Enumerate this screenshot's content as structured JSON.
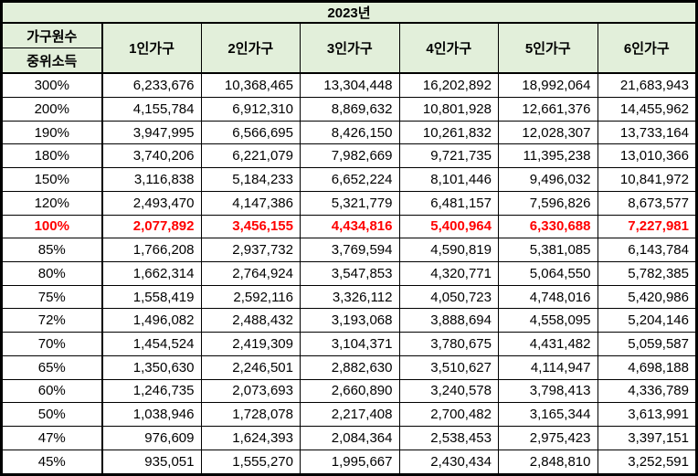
{
  "title": "2023년",
  "header": {
    "corner_top": "가구원수",
    "corner_bottom": "중위소득",
    "columns": [
      "1인가구",
      "2인가구",
      "3인가구",
      "4인가구",
      "5인가구",
      "6인가구"
    ]
  },
  "colors": {
    "header_bg": "#e2efda",
    "highlight_text": "#ff0000",
    "border": "#000000",
    "row_bg": "#ffffff"
  },
  "rows": [
    {
      "percent": "300%",
      "values": [
        "6,233,676",
        "10,368,465",
        "13,304,448",
        "16,202,892",
        "18,992,064",
        "21,683,943"
      ],
      "highlight": false
    },
    {
      "percent": "200%",
      "values": [
        "4,155,784",
        "6,912,310",
        "8,869,632",
        "10,801,928",
        "12,661,376",
        "14,455,962"
      ],
      "highlight": false
    },
    {
      "percent": "190%",
      "values": [
        "3,947,995",
        "6,566,695",
        "8,426,150",
        "10,261,832",
        "12,028,307",
        "13,733,164"
      ],
      "highlight": false
    },
    {
      "percent": "180%",
      "values": [
        "3,740,206",
        "6,221,079",
        "7,982,669",
        "9,721,735",
        "11,395,238",
        "13,010,366"
      ],
      "highlight": false
    },
    {
      "percent": "150%",
      "values": [
        "3,116,838",
        "5,184,233",
        "6,652,224",
        "8,101,446",
        "9,496,032",
        "10,841,972"
      ],
      "highlight": false
    },
    {
      "percent": "120%",
      "values": [
        "2,493,470",
        "4,147,386",
        "5,321,779",
        "6,481,157",
        "7,596,826",
        "8,673,577"
      ],
      "highlight": false
    },
    {
      "percent": "100%",
      "values": [
        "2,077,892",
        "3,456,155",
        "4,434,816",
        "5,400,964",
        "6,330,688",
        "7,227,981"
      ],
      "highlight": true
    },
    {
      "percent": "85%",
      "values": [
        "1,766,208",
        "2,937,732",
        "3,769,594",
        "4,590,819",
        "5,381,085",
        "6,143,784"
      ],
      "highlight": false
    },
    {
      "percent": "80%",
      "values": [
        "1,662,314",
        "2,764,924",
        "3,547,853",
        "4,320,771",
        "5,064,550",
        "5,782,385"
      ],
      "highlight": false
    },
    {
      "percent": "75%",
      "values": [
        "1,558,419",
        "2,592,116",
        "3,326,112",
        "4,050,723",
        "4,748,016",
        "5,420,986"
      ],
      "highlight": false
    },
    {
      "percent": "72%",
      "values": [
        "1,496,082",
        "2,488,432",
        "3,193,068",
        "3,888,694",
        "4,558,095",
        "5,204,146"
      ],
      "highlight": false
    },
    {
      "percent": "70%",
      "values": [
        "1,454,524",
        "2,419,309",
        "3,104,371",
        "3,780,675",
        "4,431,482",
        "5,059,587"
      ],
      "highlight": false
    },
    {
      "percent": "65%",
      "values": [
        "1,350,630",
        "2,246,501",
        "2,882,630",
        "3,510,627",
        "4,114,947",
        "4,698,188"
      ],
      "highlight": false
    },
    {
      "percent": "60%",
      "values": [
        "1,246,735",
        "2,073,693",
        "2,660,890",
        "3,240,578",
        "3,798,413",
        "4,336,789"
      ],
      "highlight": false
    },
    {
      "percent": "50%",
      "values": [
        "1,038,946",
        "1,728,078",
        "2,217,408",
        "2,700,482",
        "3,165,344",
        "3,613,991"
      ],
      "highlight": false
    },
    {
      "percent": "47%",
      "values": [
        "976,609",
        "1,624,393",
        "2,084,364",
        "2,538,453",
        "2,975,423",
        "3,397,151"
      ],
      "highlight": false
    },
    {
      "percent": "45%",
      "values": [
        "935,051",
        "1,555,270",
        "1,995,667",
        "2,430,434",
        "2,848,810",
        "3,252,591"
      ],
      "highlight": false
    }
  ],
  "chart_data": {
    "type": "table",
    "title": "2023년",
    "row_axis_label": "중위소득",
    "column_axis_label": "가구원수",
    "columns": [
      "1인가구",
      "2인가구",
      "3인가구",
      "4인가구",
      "5인가구",
      "6인가구"
    ],
    "row_labels": [
      "300%",
      "200%",
      "190%",
      "180%",
      "150%",
      "120%",
      "100%",
      "85%",
      "80%",
      "75%",
      "72%",
      "70%",
      "65%",
      "60%",
      "50%",
      "47%",
      "45%"
    ],
    "values": [
      [
        6233676,
        10368465,
        13304448,
        16202892,
        18992064,
        21683943
      ],
      [
        4155784,
        6912310,
        8869632,
        10801928,
        12661376,
        14455962
      ],
      [
        3947995,
        6566695,
        8426150,
        10261832,
        12028307,
        13733164
      ],
      [
        3740206,
        6221079,
        7982669,
        9721735,
        11395238,
        13010366
      ],
      [
        3116838,
        5184233,
        6652224,
        8101446,
        9496032,
        10841972
      ],
      [
        2493470,
        4147386,
        5321779,
        6481157,
        7596826,
        8673577
      ],
      [
        2077892,
        3456155,
        4434816,
        5400964,
        6330688,
        7227981
      ],
      [
        1766208,
        2937732,
        3769594,
        4590819,
        5381085,
        6143784
      ],
      [
        1662314,
        2764924,
        3547853,
        4320771,
        5064550,
        5782385
      ],
      [
        1558419,
        2592116,
        3326112,
        4050723,
        4748016,
        5420986
      ],
      [
        1496082,
        2488432,
        3193068,
        3888694,
        4558095,
        5204146
      ],
      [
        1454524,
        2419309,
        3104371,
        3780675,
        4431482,
        5059587
      ],
      [
        1350630,
        2246501,
        2882630,
        3510627,
        4114947,
        4698188
      ],
      [
        1246735,
        2073693,
        2660890,
        3240578,
        3798413,
        4336789
      ],
      [
        1038946,
        1728078,
        2217408,
        2700482,
        3165344,
        3613991
      ],
      [
        976609,
        1624393,
        2084364,
        2538453,
        2975423,
        3397151
      ],
      [
        935051,
        1555270,
        1995667,
        2430434,
        2848810,
        3252591
      ]
    ],
    "highlighted_row": "100%"
  }
}
